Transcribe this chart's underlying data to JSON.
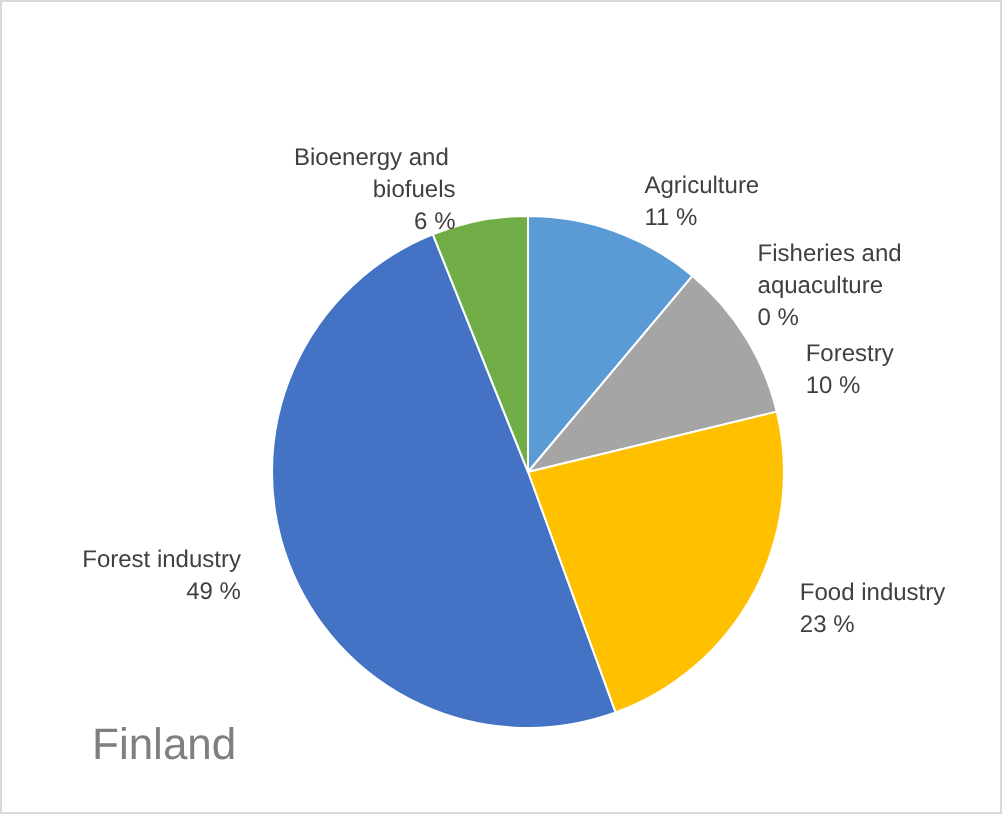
{
  "chart_data": {
    "type": "pie",
    "title": "Finland",
    "categories": [
      "Agriculture",
      "Fisheries and aquaculture",
      "Forestry",
      "Food industry",
      "Forest industry",
      "Bioenergy and biofuels"
    ],
    "values": [
      11,
      0,
      10,
      23,
      49,
      6
    ],
    "value_labels": [
      "11 %",
      "0 %",
      "10 %",
      "23 %",
      "49 %",
      "6 %"
    ],
    "colors": [
      "#5b9bd5",
      "#ed7d31",
      "#a5a5a5",
      "#ffc000",
      "#4472c4",
      "#70ad47"
    ],
    "legend": false
  }
}
